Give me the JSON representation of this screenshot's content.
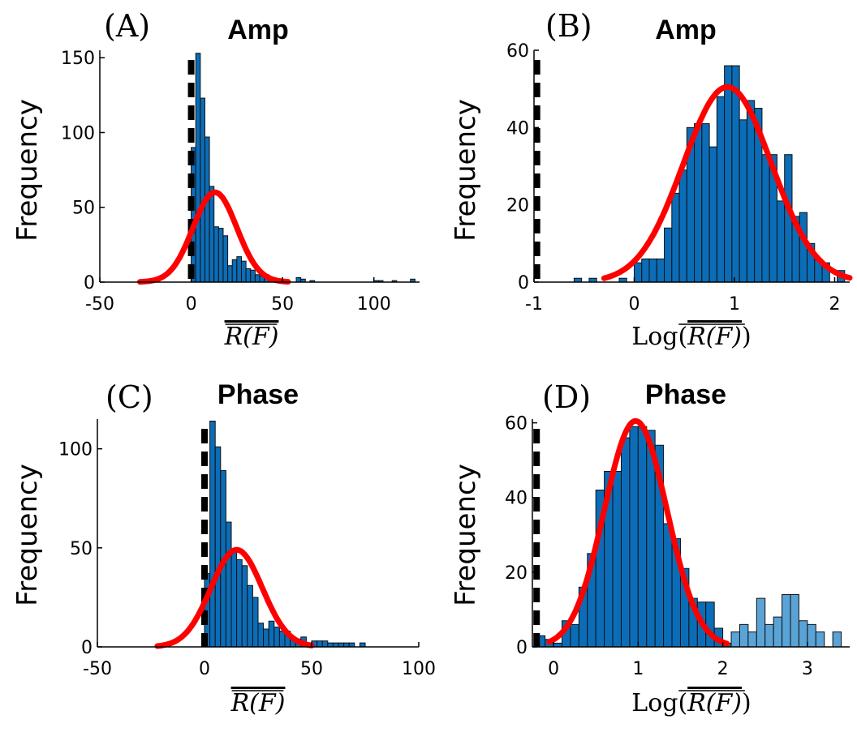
{
  "chart_data": [
    {
      "id": "A",
      "type": "bar",
      "panel_label": "(A)",
      "title": "Amp",
      "ylabel": "Frequency",
      "xlabel": "R(F)",
      "xlabel_prefix": "",
      "xlim": [
        -50,
        125
      ],
      "ylim": [
        0,
        155
      ],
      "xticks": [
        -50,
        0,
        50,
        100
      ],
      "yticks": [
        0,
        50,
        100,
        150
      ],
      "xtick_labels": [
        "-50",
        "0",
        "50",
        "100"
      ],
      "ytick_labels": [
        "0",
        "50",
        "100",
        "150"
      ],
      "dashed_line_x": 0,
      "bins": [
        {
          "x0": 0,
          "x1": 2.5,
          "y": 90
        },
        {
          "x0": 2.5,
          "x1": 5,
          "y": 153
        },
        {
          "x0": 5,
          "x1": 7.5,
          "y": 123
        },
        {
          "x0": 7.5,
          "x1": 10,
          "y": 97
        },
        {
          "x0": 10,
          "x1": 12.5,
          "y": 64
        },
        {
          "x0": 12.5,
          "x1": 15,
          "y": 37
        },
        {
          "x0": 15,
          "x1": 17.5,
          "y": 36
        },
        {
          "x0": 17.5,
          "x1": 20,
          "y": 31
        },
        {
          "x0": 20,
          "x1": 22.5,
          "y": 11
        },
        {
          "x0": 22.5,
          "x1": 25,
          "y": 15
        },
        {
          "x0": 25,
          "x1": 27.5,
          "y": 17
        },
        {
          "x0": 27.5,
          "x1": 30,
          "y": 14
        },
        {
          "x0": 30,
          "x1": 32.5,
          "y": 9
        },
        {
          "x0": 32.5,
          "x1": 35,
          "y": 8
        },
        {
          "x0": 35,
          "x1": 37.5,
          "y": 5
        },
        {
          "x0": 37.5,
          "x1": 40,
          "y": 4
        },
        {
          "x0": 40,
          "x1": 42.5,
          "y": 5
        },
        {
          "x0": 42.5,
          "x1": 45,
          "y": 2
        },
        {
          "x0": 47.5,
          "x1": 50,
          "y": 2
        },
        {
          "x0": 57.5,
          "x1": 60,
          "y": 3
        },
        {
          "x0": 60,
          "x1": 62.5,
          "y": 2
        },
        {
          "x0": 65,
          "x1": 67.5,
          "y": 1
        },
        {
          "x0": 100,
          "x1": 102.5,
          "y": 1
        },
        {
          "x0": 102.5,
          "x1": 105,
          "y": 1
        },
        {
          "x0": 110,
          "x1": 112.5,
          "y": 1
        },
        {
          "x0": 120,
          "x1": 122.5,
          "y": 2
        }
      ],
      "fit": {
        "mean": 13,
        "sd": 12,
        "peak": 60,
        "x_from": -28,
        "x_to": 53
      }
    },
    {
      "id": "B",
      "type": "bar",
      "panel_label": "(B)",
      "title": "Amp",
      "ylabel": "Frequency",
      "xlabel": "R(F)",
      "xlabel_prefix": "Log",
      "xlim": [
        -1,
        2.15
      ],
      "ylim": [
        0,
        60
      ],
      "xticks": [
        -1,
        0,
        1,
        2
      ],
      "yticks": [
        0,
        20,
        40,
        60
      ],
      "xtick_labels": [
        "-1",
        "0",
        "1",
        "2"
      ],
      "ytick_labels": [
        "0",
        "20",
        "40",
        "60"
      ],
      "dashed_line_x": -0.97,
      "bins": [
        {
          "x0": -0.6,
          "x1": -0.525,
          "y": 1
        },
        {
          "x0": -0.45,
          "x1": -0.375,
          "y": 1
        },
        {
          "x0": -0.15,
          "x1": -0.075,
          "y": 1
        },
        {
          "x0": 0.0,
          "x1": 0.075,
          "y": 5
        },
        {
          "x0": 0.075,
          "x1": 0.15,
          "y": 6
        },
        {
          "x0": 0.15,
          "x1": 0.225,
          "y": 6
        },
        {
          "x0": 0.225,
          "x1": 0.3,
          "y": 6
        },
        {
          "x0": 0.3,
          "x1": 0.375,
          "y": 14
        },
        {
          "x0": 0.375,
          "x1": 0.45,
          "y": 23
        },
        {
          "x0": 0.45,
          "x1": 0.525,
          "y": 29
        },
        {
          "x0": 0.525,
          "x1": 0.6,
          "y": 40
        },
        {
          "x0": 0.6,
          "x1": 0.675,
          "y": 41
        },
        {
          "x0": 0.675,
          "x1": 0.75,
          "y": 41
        },
        {
          "x0": 0.75,
          "x1": 0.825,
          "y": 35
        },
        {
          "x0": 0.825,
          "x1": 0.9,
          "y": 48
        },
        {
          "x0": 0.9,
          "x1": 0.975,
          "y": 56
        },
        {
          "x0": 0.975,
          "x1": 1.05,
          "y": 56
        },
        {
          "x0": 1.05,
          "x1": 1.125,
          "y": 42
        },
        {
          "x0": 1.125,
          "x1": 1.2,
          "y": 47
        },
        {
          "x0": 1.2,
          "x1": 1.275,
          "y": 45
        },
        {
          "x0": 1.275,
          "x1": 1.35,
          "y": 33
        },
        {
          "x0": 1.35,
          "x1": 1.425,
          "y": 33
        },
        {
          "x0": 1.425,
          "x1": 1.5,
          "y": 21
        },
        {
          "x0": 1.5,
          "x1": 1.575,
          "y": 33
        },
        {
          "x0": 1.575,
          "x1": 1.65,
          "y": 17
        },
        {
          "x0": 1.65,
          "x1": 1.725,
          "y": 18
        },
        {
          "x0": 1.725,
          "x1": 1.8,
          "y": 10
        },
        {
          "x0": 1.8,
          "x1": 1.875,
          "y": 6
        },
        {
          "x0": 1.875,
          "x1": 1.95,
          "y": 5
        },
        {
          "x0": 2.025,
          "x1": 2.1,
          "y": 3
        }
      ],
      "fit": {
        "mean": 0.93,
        "sd": 0.44,
        "peak": 50.5,
        "x_from": -0.3,
        "x_to": 2.15
      }
    },
    {
      "id": "C",
      "type": "bar",
      "panel_label": "(C)",
      "title": "Phase",
      "ylabel": "Frequency",
      "xlabel": "R(F)",
      "xlabel_prefix": "",
      "xlim": [
        -50,
        100
      ],
      "ylim": [
        0,
        115
      ],
      "xticks": [
        -50,
        0,
        50,
        100
      ],
      "yticks": [
        0,
        50,
        100
      ],
      "xtick_labels": [
        "-50",
        "0",
        "50",
        "100"
      ],
      "ytick_labels": [
        "0",
        "50",
        "100"
      ],
      "dashed_line_x": 0,
      "bins": [
        {
          "x0": 0,
          "x1": 2.5,
          "y": 37
        },
        {
          "x0": 2.5,
          "x1": 5,
          "y": 114
        },
        {
          "x0": 5,
          "x1": 7.5,
          "y": 101
        },
        {
          "x0": 7.5,
          "x1": 10,
          "y": 89
        },
        {
          "x0": 10,
          "x1": 12.5,
          "y": 63
        },
        {
          "x0": 12.5,
          "x1": 15,
          "y": 48
        },
        {
          "x0": 15,
          "x1": 17.5,
          "y": 44
        },
        {
          "x0": 17.5,
          "x1": 20,
          "y": 41
        },
        {
          "x0": 20,
          "x1": 22.5,
          "y": 31
        },
        {
          "x0": 22.5,
          "x1": 25,
          "y": 25
        },
        {
          "x0": 25,
          "x1": 27.5,
          "y": 12
        },
        {
          "x0": 27.5,
          "x1": 30,
          "y": 9
        },
        {
          "x0": 30,
          "x1": 32.5,
          "y": 13
        },
        {
          "x0": 32.5,
          "x1": 35,
          "y": 10
        },
        {
          "x0": 35,
          "x1": 37.5,
          "y": 8
        },
        {
          "x0": 37.5,
          "x1": 40,
          "y": 8
        },
        {
          "x0": 40,
          "x1": 42.5,
          "y": 5
        },
        {
          "x0": 42.5,
          "x1": 45,
          "y": 4
        },
        {
          "x0": 45,
          "x1": 47.5,
          "y": 5
        },
        {
          "x0": 50,
          "x1": 52.5,
          "y": 3
        },
        {
          "x0": 52.5,
          "x1": 55,
          "y": 3
        },
        {
          "x0": 55,
          "x1": 57.5,
          "y": 3
        },
        {
          "x0": 57.5,
          "x1": 60,
          "y": 2
        },
        {
          "x0": 60,
          "x1": 62.5,
          "y": 2
        },
        {
          "x0": 62.5,
          "x1": 65,
          "y": 2
        },
        {
          "x0": 65,
          "x1": 67.5,
          "y": 2
        },
        {
          "x0": 67.5,
          "x1": 70,
          "y": 2
        },
        {
          "x0": 72.5,
          "x1": 75,
          "y": 2
        }
      ],
      "fit": {
        "mean": 15,
        "sd": 12,
        "peak": 49,
        "x_from": -22,
        "x_to": 50
      }
    },
    {
      "id": "D",
      "type": "bar",
      "panel_label": "(D)",
      "title": "Phase",
      "ylabel": "Frequency",
      "xlabel": "R(F)",
      "xlabel_prefix": "Log",
      "xlim": [
        -0.25,
        3.5
      ],
      "ylim": [
        0,
        61
      ],
      "xticks": [
        0,
        1,
        2,
        3
      ],
      "yticks": [
        0,
        20,
        40,
        60
      ],
      "xtick_labels": [
        "0",
        "1",
        "2",
        "3"
      ],
      "ytick_labels": [
        "0",
        "20",
        "40",
        "60"
      ],
      "dashed_line_x": -0.2,
      "bins": [
        {
          "x0": -0.2,
          "x1": -0.1,
          "y": 3
        },
        {
          "x0": -0.1,
          "x1": 0.0,
          "y": 2
        },
        {
          "x0": 0.0,
          "x1": 0.1,
          "y": 1
        },
        {
          "x0": 0.1,
          "x1": 0.2,
          "y": 7
        },
        {
          "x0": 0.2,
          "x1": 0.3,
          "y": 6
        },
        {
          "x0": 0.3,
          "x1": 0.4,
          "y": 16
        },
        {
          "x0": 0.4,
          "x1": 0.5,
          "y": 25
        },
        {
          "x0": 0.5,
          "x1": 0.6,
          "y": 42
        },
        {
          "x0": 0.6,
          "x1": 0.7,
          "y": 47
        },
        {
          "x0": 0.7,
          "x1": 0.8,
          "y": 47
        },
        {
          "x0": 0.8,
          "x1": 0.9,
          "y": 56
        },
        {
          "x0": 0.9,
          "x1": 1.0,
          "y": 59
        },
        {
          "x0": 1.0,
          "x1": 1.1,
          "y": 59
        },
        {
          "x0": 1.1,
          "x1": 1.2,
          "y": 58
        },
        {
          "x0": 1.2,
          "x1": 1.3,
          "y": 54
        },
        {
          "x0": 1.3,
          "x1": 1.4,
          "y": 33
        },
        {
          "x0": 1.4,
          "x1": 1.5,
          "y": 29
        },
        {
          "x0": 1.5,
          "x1": 1.6,
          "y": 21
        },
        {
          "x0": 1.6,
          "x1": 1.7,
          "y": 13
        },
        {
          "x0": 1.7,
          "x1": 1.8,
          "y": 12
        },
        {
          "x0": 1.8,
          "x1": 1.9,
          "y": 12
        },
        {
          "x0": 1.9,
          "x1": 2.0,
          "y": 5
        },
        {
          "x0": 2.0,
          "x1": 2.1,
          "y": 1
        }
      ],
      "bins2": [
        {
          "x0": 2.1,
          "x1": 2.2,
          "y": 4
        },
        {
          "x0": 2.2,
          "x1": 2.3,
          "y": 6
        },
        {
          "x0": 2.3,
          "x1": 2.4,
          "y": 4
        },
        {
          "x0": 2.4,
          "x1": 2.5,
          "y": 13
        },
        {
          "x0": 2.5,
          "x1": 2.6,
          "y": 6
        },
        {
          "x0": 2.6,
          "x1": 2.7,
          "y": 8
        },
        {
          "x0": 2.7,
          "x1": 2.8,
          "y": 14
        },
        {
          "x0": 2.8,
          "x1": 2.9,
          "y": 14
        },
        {
          "x0": 2.9,
          "x1": 3.0,
          "y": 7
        },
        {
          "x0": 3.0,
          "x1": 3.1,
          "y": 6
        },
        {
          "x0": 3.1,
          "x1": 3.2,
          "y": 4
        },
        {
          "x0": 3.3,
          "x1": 3.4,
          "y": 4
        }
      ],
      "fit": {
        "mean": 0.97,
        "sd": 0.37,
        "peak": 60.5,
        "x_from": -0.05,
        "x_to": 2.05
      }
    }
  ]
}
